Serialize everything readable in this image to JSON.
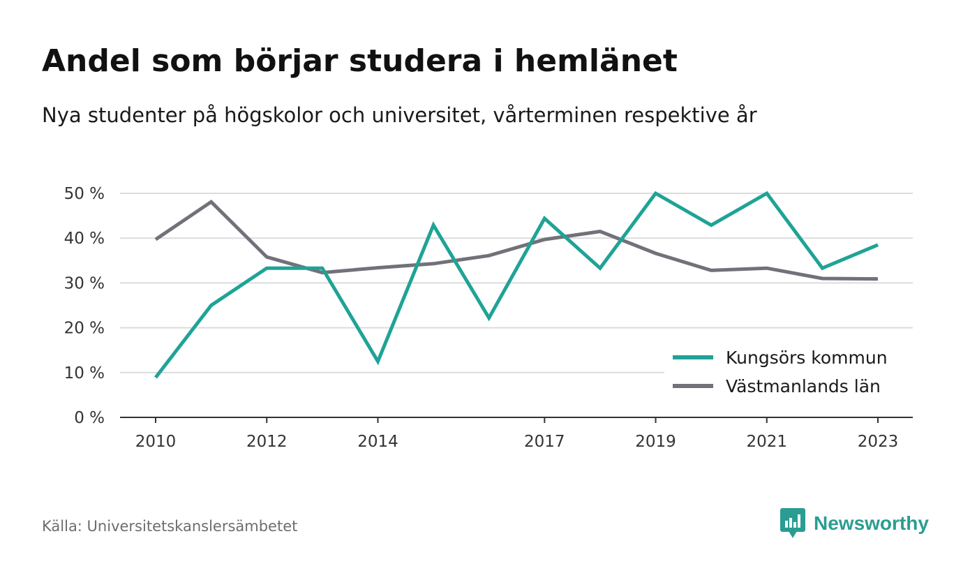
{
  "title": "Andel som börjar studera i hemlänet",
  "subtitle": "Nya studenter på högskolor och universitet, vårterminen respektive år",
  "source": "Källa: Universitetskanslersämbetet",
  "brand": {
    "name": "Newsworthy",
    "logo_icon": "bar-chart-speech-bubble-icon",
    "color": "#2a9d92"
  },
  "chart_data": {
    "type": "line",
    "x": [
      2010,
      2011,
      2012,
      2013,
      2014,
      2015,
      2016,
      2017,
      2018,
      2019,
      2020,
      2021,
      2022,
      2023
    ],
    "xticks": [
      "2010",
      "2012",
      "2014",
      "2017",
      "2019",
      "2021",
      "2023"
    ],
    "yticks": [
      "0 %",
      "10 %",
      "20 %",
      "30 %",
      "40 %",
      "50 %"
    ],
    "ylim": [
      0,
      50
    ],
    "grid": true,
    "legend_position": "bottom-right",
    "series": [
      {
        "name": "Kungsörs kommun",
        "color": "#1fa396",
        "values": [
          8.9,
          25,
          33.3,
          33.3,
          12.5,
          42.9,
          22.2,
          44.4,
          33.3,
          50,
          42.9,
          50,
          33.3,
          38.5
        ]
      },
      {
        "name": "Västmanlands län",
        "color": "#727179",
        "values": [
          39.7,
          48.1,
          35.8,
          32.3,
          33.4,
          34.3,
          36.1,
          39.7,
          41.5,
          36.6,
          32.8,
          33.3,
          31.0,
          30.9
        ]
      }
    ]
  }
}
